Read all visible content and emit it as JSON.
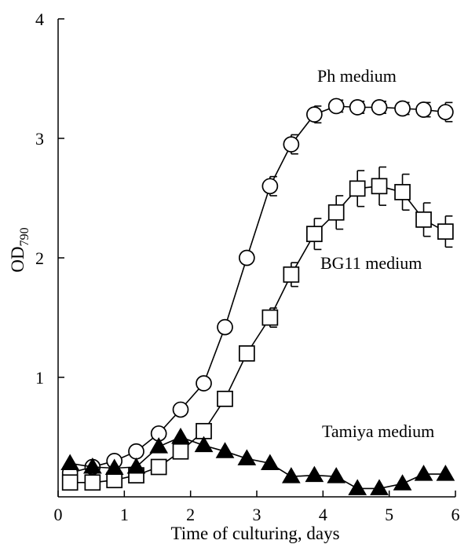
{
  "chart_data": {
    "type": "scatter",
    "xlabel": "Time of culturing, days",
    "ylabel_main": "OD",
    "ylabel_sub": "790",
    "xlim": [
      0,
      6
    ],
    "ylim": [
      0,
      4
    ],
    "xticks": [
      "0",
      "1",
      "2",
      "3",
      "4",
      "5",
      "6"
    ],
    "yticks": [
      "1",
      "2",
      "3",
      "4"
    ],
    "grid": false,
    "series": [
      {
        "name": "Ph medium",
        "marker": "circle",
        "x": [
          0.18,
          0.52,
          0.85,
          1.18,
          1.52,
          1.85,
          2.2,
          2.52,
          2.85,
          3.2,
          3.52,
          3.87,
          4.2,
          4.52,
          4.85,
          5.2,
          5.52,
          5.85
        ],
        "y": [
          0.2,
          0.25,
          0.3,
          0.38,
          0.53,
          0.73,
          0.95,
          1.42,
          2.0,
          2.6,
          2.95,
          3.2,
          3.27,
          3.26,
          3.26,
          3.25,
          3.24,
          3.22
        ],
        "err": [
          0,
          0,
          0,
          0,
          0,
          0,
          0,
          0,
          0,
          0.08,
          0.08,
          0.07,
          0.05,
          0.05,
          0.05,
          0.05,
          0.06,
          0.08
        ]
      },
      {
        "name": "BG11 medium",
        "marker": "square",
        "x": [
          0.18,
          0.52,
          0.85,
          1.18,
          1.52,
          1.85,
          2.2,
          2.52,
          2.85,
          3.2,
          3.52,
          3.87,
          4.2,
          4.52,
          4.85,
          5.2,
          5.52,
          5.85
        ],
        "y": [
          0.12,
          0.12,
          0.14,
          0.18,
          0.25,
          0.38,
          0.55,
          0.82,
          1.2,
          1.5,
          1.86,
          2.2,
          2.38,
          2.58,
          2.6,
          2.55,
          2.32,
          2.22
        ],
        "err": [
          0,
          0,
          0,
          0,
          0,
          0,
          0,
          0,
          0,
          0.08,
          0.1,
          0.13,
          0.14,
          0.15,
          0.16,
          0.15,
          0.14,
          0.13
        ]
      },
      {
        "name": "Tamiya medium",
        "marker": "triangle",
        "x": [
          0.18,
          0.52,
          0.85,
          1.18,
          1.52,
          1.85,
          2.2,
          2.52,
          2.85,
          3.2,
          3.52,
          3.87,
          4.2,
          4.52,
          4.85,
          5.2,
          5.52,
          5.85
        ],
        "y": [
          0.28,
          0.25,
          0.24,
          0.25,
          0.42,
          0.5,
          0.43,
          0.38,
          0.32,
          0.28,
          0.17,
          0.18,
          0.17,
          0.07,
          0.07,
          0.11,
          0.19,
          0.19
        ],
        "err": [
          0,
          0,
          0,
          0,
          0,
          0,
          0,
          0,
          0,
          0,
          0,
          0,
          0,
          0,
          0,
          0,
          0,
          0
        ]
      }
    ],
    "annotations": [
      "Ph medium",
      "BG11 medium",
      "Tamiya medium"
    ]
  }
}
